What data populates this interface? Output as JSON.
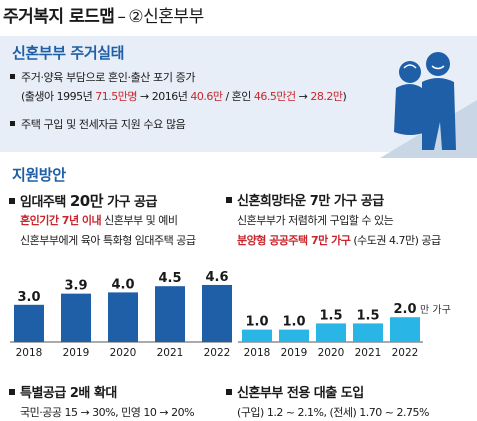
{
  "header": {
    "title": "주거복지 로드맵",
    "dash": "–",
    "subtitle": "②신혼부부"
  },
  "status": {
    "heading": "신혼부부 주거실태",
    "bullets": [
      {
        "text": "주거·양육 부담으로 혼인·출산 포기 증가"
      },
      {
        "text": "주택 구입 및 전세자금 지원 수요 많음"
      }
    ],
    "detail": {
      "p1": "(출생아 1995년 ",
      "v1": "71.5만명",
      "p2": " → 2016년 ",
      "v2": "40.6만",
      "p3": " /  혼인 ",
      "v3": "46.5만건",
      "p4": " → ",
      "v4": "28.2만",
      "p5": ")"
    }
  },
  "support": {
    "heading": "지원방안",
    "left": {
      "title_pre": "임대주택 ",
      "title_bold": "20만",
      "title_post": " 가구 공급",
      "line1_red": "혼인기간 7년 이내",
      "line1_rest": " 신혼부부 및 예비",
      "line2": "신혼부부에게 육아 특화형 임대주택 공급"
    },
    "right": {
      "title_pre": "신혼희망타운 ",
      "title_bold": "7만",
      "title_post": " 가구 공급",
      "line1": "신혼부부가 저렴하게 구입할 수 있는",
      "line2_red": "분양형 공공주택 7만 가구",
      "line2_rest": " (수도권 4.7만) 공급"
    },
    "bottom_left": {
      "title": "특별공급 2배 확대",
      "line": "국민·공공 15 → 30%, 민영 10 → 20%"
    },
    "bottom_right": {
      "title": "신혼부부 전용 대출 도입",
      "line": "(구입) 1.2 ~ 2.1%, (전세) 1.70 ~ 2.75%"
    }
  },
  "chart_data": [
    {
      "type": "bar",
      "categories": [
        "2018",
        "2019",
        "2020",
        "2021",
        "2022"
      ],
      "values": [
        3.0,
        3.9,
        4.0,
        4.5,
        4.6
      ],
      "value_labels": [
        "3.0",
        "3.9",
        "4.0",
        "4.5",
        "4.6"
      ],
      "unit": "만 가구",
      "ylim": [
        0,
        5
      ],
      "color": "#1f5fa8"
    },
    {
      "type": "bar",
      "categories": [
        "2018",
        "2019",
        "2020",
        "2021",
        "2022"
      ],
      "values": [
        1.0,
        1.0,
        1.5,
        1.5,
        2.0
      ],
      "value_labels": [
        "1.0",
        "1.0",
        "1.5",
        "1.5",
        "2.0"
      ],
      "unit": "만 가구",
      "ylim": [
        0,
        5
      ],
      "color": "#29b6e6"
    }
  ],
  "colors": {
    "accent": "#1f5fa8",
    "highlight": "#c8262d",
    "light_blue": "#29b6e6",
    "panel": "#e7eef7"
  }
}
